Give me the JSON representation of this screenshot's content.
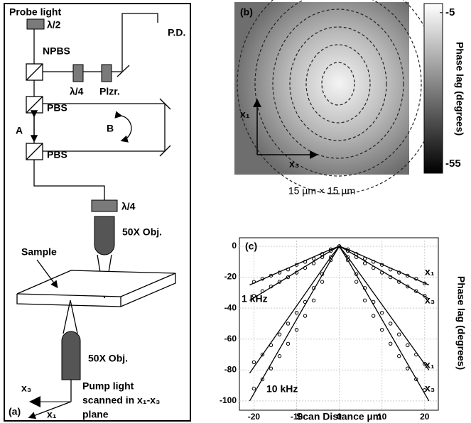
{
  "diagram": {
    "panel": "(a)",
    "labels": {
      "probe": "Probe light",
      "half_wave": "λ/2",
      "pd": "P.D.",
      "npbs": "NPBS",
      "qwp1": "λ/4",
      "polarizer": "Plzr.",
      "pbs1": "PBS",
      "a": "A",
      "b": "B",
      "pbs2": "PBS",
      "qwp2": "λ/4",
      "obj1": "50X Obj.",
      "sample": "Sample",
      "obj2": "50X Obj.",
      "x3": "x₃",
      "x1": "x₁",
      "pump1": "Pump light",
      "pump2": "scanned in x₁-x₃",
      "pump3": "plane"
    }
  },
  "chart_data": [
    {
      "type": "contour",
      "title": "(b)",
      "axis_x": "x₃",
      "axis_y": "x₁",
      "xlabel": "15 µm × 15 µm",
      "colorbar_label": "Phase lag (degrees)",
      "clim": [
        -58,
        -2
      ],
      "colorbar_ticks": [
        -5,
        -55
      ]
    },
    {
      "type": "line",
      "title": "(c)",
      "xlabel": "Scan Distance µm",
      "ylabel": "Phase lag (degrees)",
      "xlim": [
        -23.4,
        23.2
      ],
      "ylim": [
        -106,
        5.5
      ],
      "xticks": [
        -20,
        -10,
        0,
        10,
        20
      ],
      "yticks": [
        0,
        -20,
        -40,
        -60,
        -80,
        -100
      ],
      "grid": true,
      "annotations": [
        "1 kHz",
        "10 kHz",
        "x₁",
        "x₃",
        "x₁",
        "x₃"
      ],
      "x": [
        -20,
        -18,
        -16,
        -14,
        -12,
        -10,
        -8,
        -6,
        -4,
        -2,
        0,
        2,
        4,
        6,
        8,
        10,
        12,
        14,
        16,
        18,
        20
      ],
      "measured": [
        {
          "values": [
            -23,
            -21,
            -19,
            -17,
            -15,
            -12,
            -10,
            -8,
            -5,
            -2,
            0,
            -2,
            -5,
            -8,
            -10,
            -12,
            -15,
            -17,
            -19,
            -21,
            -24
          ]
        },
        {
          "values": [
            -32,
            -29,
            -26,
            -23,
            -20,
            -17,
            -14,
            -11,
            -7,
            -3,
            0,
            -3,
            -7,
            -11,
            -14,
            -17,
            -20,
            -23,
            -26,
            -29,
            -32
          ]
        },
        {
          "values": [
            -75,
            -70,
            -64,
            -57,
            -50,
            -43,
            -36,
            -27,
            -18,
            -7,
            0,
            -7,
            -18,
            -27,
            -36,
            -43,
            -50,
            -57,
            -64,
            -70,
            -76
          ]
        },
        {
          "values": [
            -92,
            -86,
            -79,
            -71,
            -63,
            -54,
            -45,
            -35,
            -23,
            -9,
            0,
            -9,
            -23,
            -35,
            -45,
            -54,
            -63,
            -71,
            -79,
            -86,
            -93
          ]
        }
      ],
      "fits": [
        {
          "x": [
            -21,
            -2,
            0,
            2,
            21
          ],
          "values": [
            -25,
            -2,
            0,
            -2,
            -25
          ]
        },
        {
          "x": [
            -21,
            -2,
            0,
            2,
            21
          ],
          "values": [
            -35,
            -3,
            0,
            -3,
            -34
          ]
        },
        {
          "x": [
            -21,
            -2,
            0,
            2,
            21
          ],
          "values": [
            -82,
            -7,
            0,
            -7,
            -80
          ]
        },
        {
          "x": [
            -21,
            -2,
            0,
            2,
            21
          ],
          "values": [
            -100,
            -9,
            0,
            -9,
            -100
          ]
        }
      ]
    }
  ]
}
